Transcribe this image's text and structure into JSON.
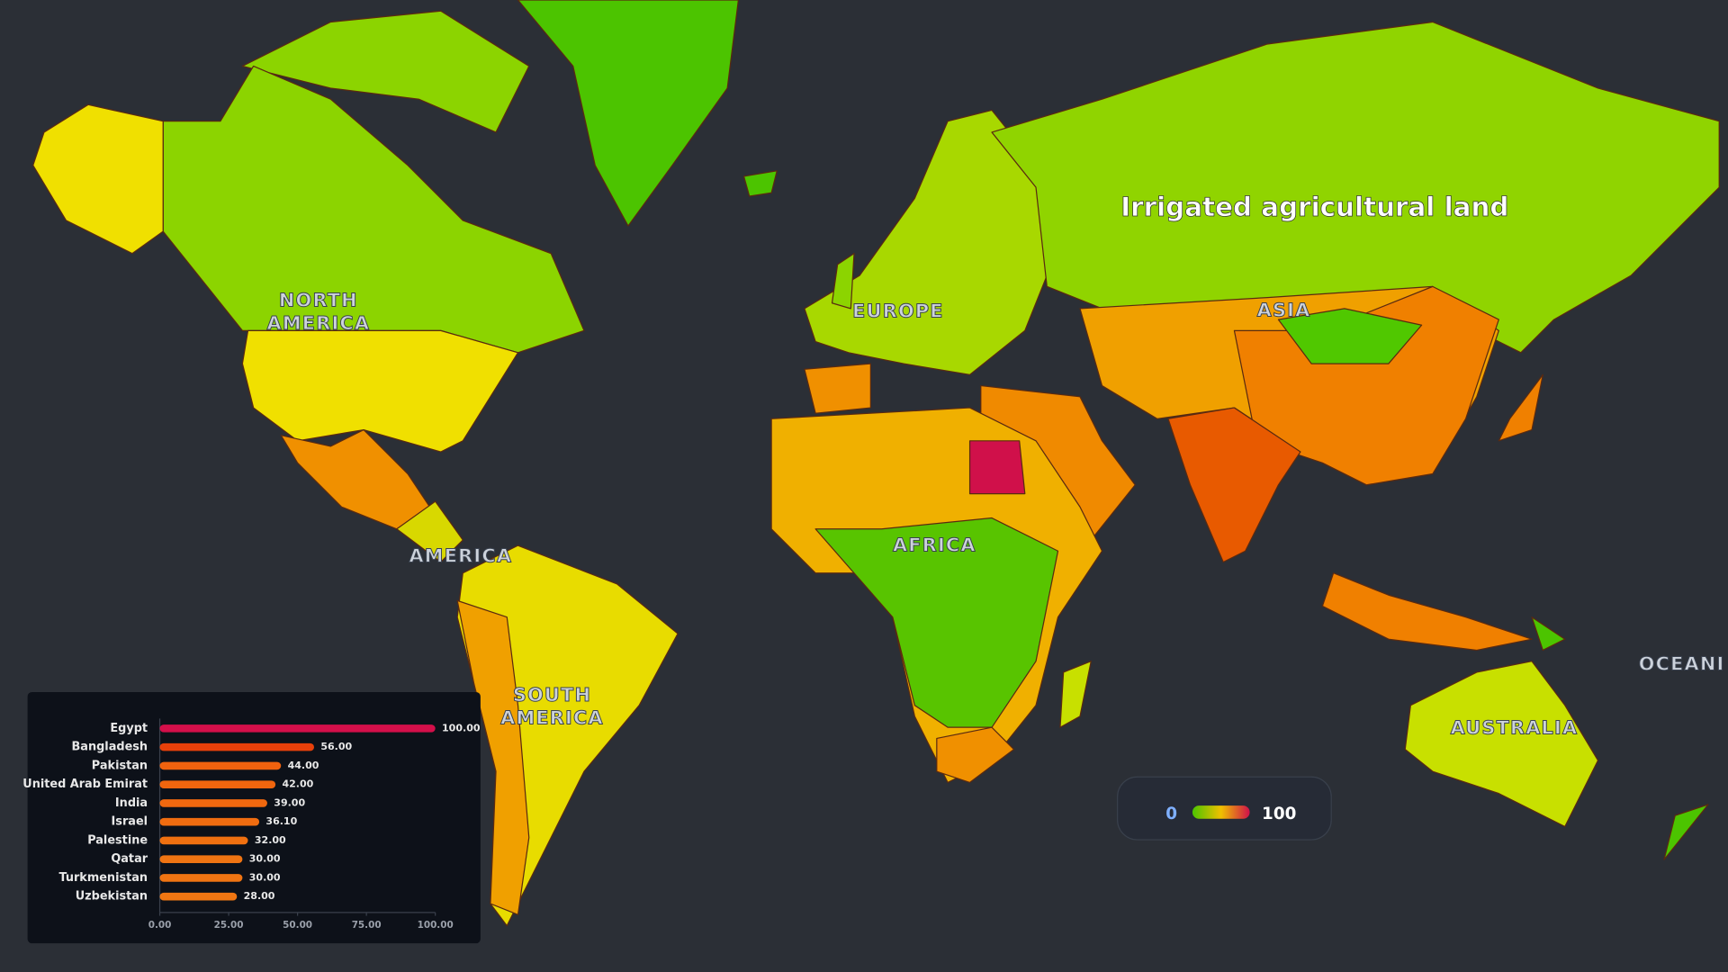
{
  "title": "Irrigated agricultural land",
  "region_labels": [
    {
      "lines": [
        "NORTH",
        "AMERICA"
      ]
    },
    {
      "lines": [
        "EUROPE"
      ]
    },
    {
      "lines": [
        "ASIA"
      ]
    },
    {
      "lines": [
        "AMERICA"
      ]
    },
    {
      "lines": [
        "AFRICA"
      ]
    },
    {
      "lines": [
        "SOUTH",
        "AMERICA"
      ]
    },
    {
      "lines": [
        "AUSTRALIA"
      ]
    },
    {
      "lines": [
        "OCEANI"
      ]
    }
  ],
  "legend": {
    "min": 0,
    "max": 100
  },
  "chart_data": {
    "type": "hbar",
    "categories": [
      "Egypt",
      "Bangladesh",
      "Pakistan",
      "United Arab Emirat",
      "India",
      "Israel",
      "Palestine",
      "Qatar",
      "Turkmenistan",
      "Uzbekistan"
    ],
    "values": [
      100,
      56,
      44,
      42,
      39,
      36.1,
      32,
      30,
      30,
      28
    ],
    "value_labels": [
      "100.00",
      "56.00",
      "44.00",
      "42.00",
      "39.00",
      "36.10",
      "32.00",
      "30.00",
      "30.00",
      "28.00"
    ],
    "colors": [
      "#d40f4a",
      "#e8400a",
      "#f0620e",
      "#f0650e",
      "#f0680f",
      "#f06c10",
      "#f07010",
      "#f07412",
      "#f07412",
      "#f07612"
    ],
    "xlim": [
      0,
      100
    ],
    "xticks": [
      {
        "value": 0,
        "label": "0.00"
      },
      {
        "value": 25,
        "label": "25.00"
      },
      {
        "value": 50,
        "label": "50.00"
      },
      {
        "value": 75,
        "label": "75.00"
      },
      {
        "value": 100,
        "label": "100.00"
      }
    ]
  }
}
